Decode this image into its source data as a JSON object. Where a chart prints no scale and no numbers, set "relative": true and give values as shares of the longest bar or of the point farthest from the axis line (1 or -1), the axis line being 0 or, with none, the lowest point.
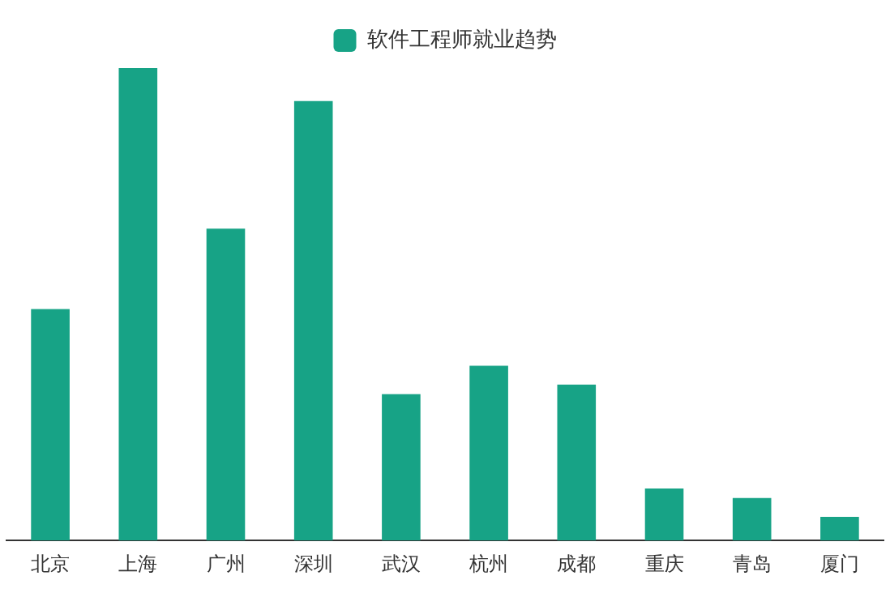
{
  "chart_data": {
    "type": "bar",
    "relative": true,
    "categories": [
      "北京",
      "上海",
      "广州",
      "深圳",
      "武汉",
      "杭州",
      "成都",
      "重庆",
      "青岛",
      "厦门"
    ],
    "series": [
      {
        "name": "软件工程师就业趋势",
        "color": "#17a386",
        "values": [
          0.49,
          1,
          0.66,
          0.93,
          0.31,
          0.37,
          0.33,
          0.11,
          0.09,
          0.05
        ]
      }
    ],
    "legend": "top",
    "grid": false
  }
}
